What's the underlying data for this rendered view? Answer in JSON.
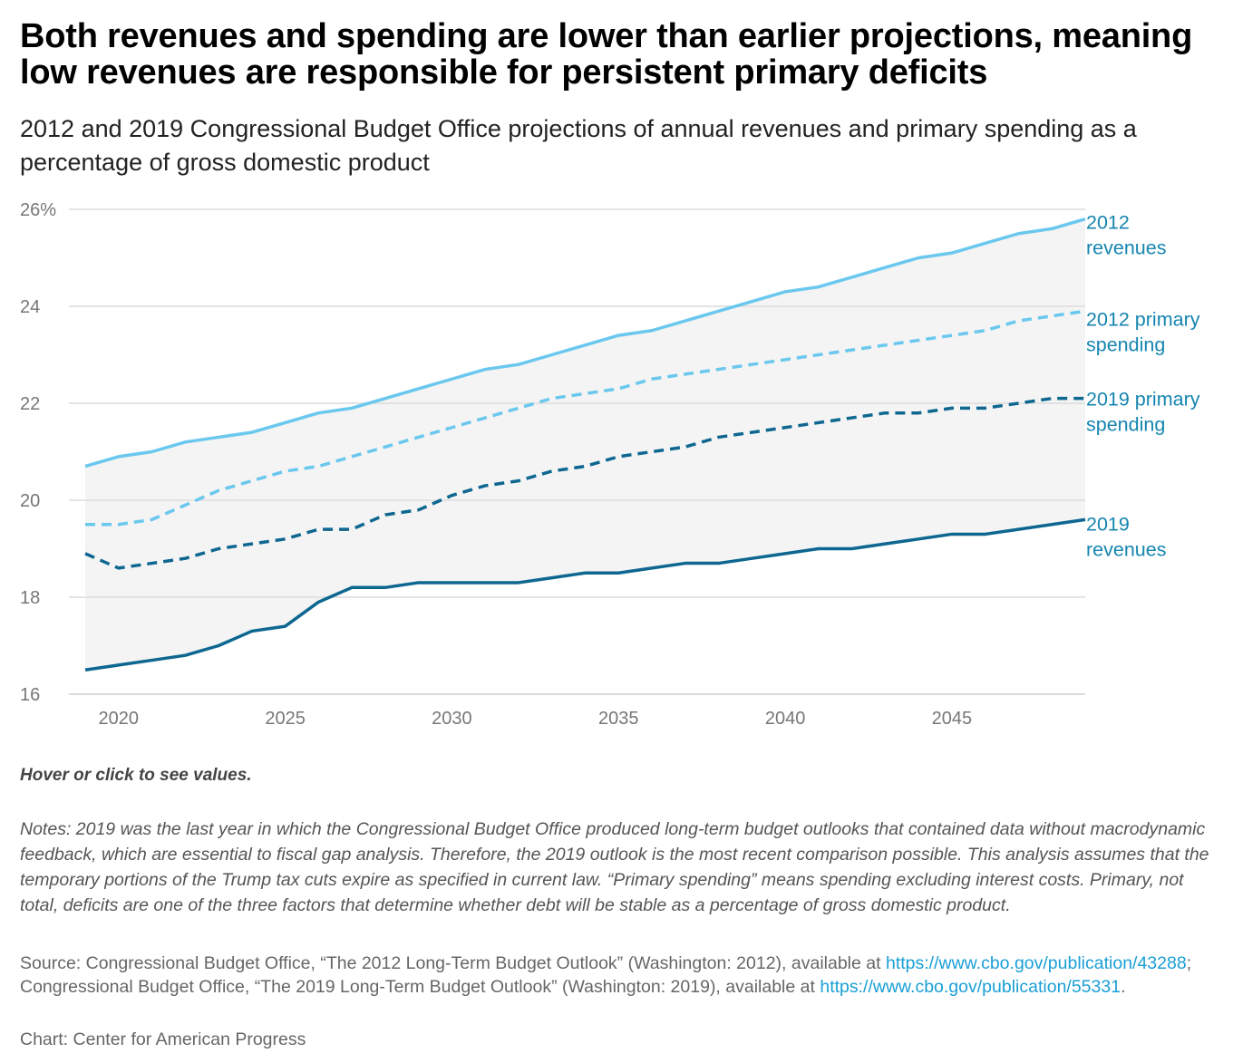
{
  "title": "Both revenues and spending are lower than earlier projections, meaning low revenues are responsible for persistent primary deficits",
  "subtitle": "2012 and 2019 Congressional Budget Office projections of annual revenues and primary spending as a percentage of gross domestic product",
  "hint": "Hover or click to see values.",
  "notes": "Notes: 2019 was the last year in which the Congressional Budget Office produced long-term budget outlooks that contained data without macrodynamic feedback, which are essential to fiscal gap analysis. Therefore, the 2019 outlook is the most recent comparison possible. This analysis assumes that the temporary portions of the Trump tax cuts expire as specified in current law. “Primary spending” means spending excluding interest costs. Primary, not total, deficits are one of the three factors that determine whether debt will be stable as a percentage of gross domestic product.",
  "source": {
    "prefix": "Source: Congressional Budget Office, “The 2012 Long-Term Budget Outlook” (Washington: 2012), available at ",
    "link1": "https://www.cbo.gov/publication/43288",
    "middle": "; Congressional Budget Office, “The 2019 Long-Term Budget Outlook” (Washington: 2019), available at ",
    "link2": "https://www.cbo.gov/publication/55331",
    "suffix": "."
  },
  "credit": "Chart: Center for American Progress",
  "colors": {
    "rev2012": "#6ac8ee",
    "spend2012": "#6ac8ee",
    "spend2019": "#0e6790",
    "rev2019": "#0e6790",
    "label": "#1585b0",
    "band": "#f4f4f4",
    "grid": "#dcdcdc",
    "axis": "#777777"
  },
  "chart_data": {
    "type": "line",
    "title": "Both revenues and spending are lower than earlier projections, meaning low revenues are responsible for persistent primary deficits",
    "xlabel": "",
    "ylabel": "",
    "xlim": [
      2019,
      2049
    ],
    "ylim": [
      16,
      26
    ],
    "yticks": [
      16,
      18,
      20,
      22,
      24,
      26
    ],
    "ytick_labels": [
      "16",
      "18",
      "20",
      "22",
      "24",
      "26%"
    ],
    "xticks": [
      2020,
      2025,
      2030,
      2035,
      2040,
      2045
    ],
    "xtick_labels": [
      "2020",
      "2025",
      "2030",
      "2035",
      "2040",
      "2045"
    ],
    "x": [
      2019,
      2020,
      2021,
      2022,
      2023,
      2024,
      2025,
      2026,
      2027,
      2028,
      2029,
      2030,
      2031,
      2032,
      2033,
      2034,
      2035,
      2036,
      2037,
      2038,
      2039,
      2040,
      2041,
      2042,
      2043,
      2044,
      2045,
      2046,
      2047,
      2048,
      2049
    ],
    "shaded_band": "between 2012 revenues and 2019 revenues",
    "series": [
      {
        "name": "2012 revenues",
        "label_lines": [
          "2012",
          "revenues"
        ],
        "style": "solid",
        "color_key": "rev2012",
        "values": [
          20.7,
          20.9,
          21.0,
          21.2,
          21.3,
          21.4,
          21.6,
          21.8,
          21.9,
          22.1,
          22.3,
          22.5,
          22.7,
          22.8,
          23.0,
          23.2,
          23.4,
          23.5,
          23.7,
          23.9,
          24.1,
          24.3,
          24.4,
          24.6,
          24.8,
          25.0,
          25.1,
          25.3,
          25.5,
          25.6,
          25.8
        ]
      },
      {
        "name": "2012 primary spending",
        "label_lines": [
          "2012 primary",
          "spending"
        ],
        "style": "dashed",
        "color_key": "spend2012",
        "values": [
          19.5,
          19.5,
          19.6,
          19.9,
          20.2,
          20.4,
          20.6,
          20.7,
          20.9,
          21.1,
          21.3,
          21.5,
          21.7,
          21.9,
          22.1,
          22.2,
          22.3,
          22.5,
          22.6,
          22.7,
          22.8,
          22.9,
          23.0,
          23.1,
          23.2,
          23.3,
          23.4,
          23.5,
          23.7,
          23.8,
          23.9
        ]
      },
      {
        "name": "2019 primary spending",
        "label_lines": [
          "2019 primary",
          "spending"
        ],
        "style": "dashed",
        "color_key": "spend2019",
        "values": [
          18.9,
          18.6,
          18.7,
          18.8,
          19.0,
          19.1,
          19.2,
          19.4,
          19.4,
          19.7,
          19.8,
          20.1,
          20.3,
          20.4,
          20.6,
          20.7,
          20.9,
          21.0,
          21.1,
          21.3,
          21.4,
          21.5,
          21.6,
          21.7,
          21.8,
          21.8,
          21.9,
          21.9,
          22.0,
          22.1,
          22.1
        ]
      },
      {
        "name": "2019 revenues",
        "label_lines": [
          "2019",
          "revenues"
        ],
        "style": "solid",
        "color_key": "rev2019",
        "values": [
          16.5,
          16.6,
          16.7,
          16.8,
          17.0,
          17.3,
          17.4,
          17.9,
          18.2,
          18.2,
          18.3,
          18.3,
          18.3,
          18.3,
          18.4,
          18.5,
          18.5,
          18.6,
          18.7,
          18.7,
          18.8,
          18.9,
          19.0,
          19.0,
          19.1,
          19.2,
          19.3,
          19.3,
          19.4,
          19.5,
          19.6
        ]
      }
    ]
  }
}
